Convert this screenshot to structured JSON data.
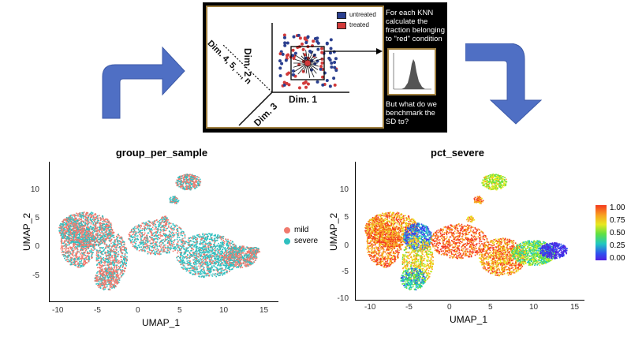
{
  "schematic": {
    "axes": {
      "dim1": "Dim. 1",
      "dim2": "Dim. 2",
      "dim3": "Dim. 3",
      "dim_n": "Dim. 4, 5, ..., n"
    },
    "legend": {
      "untreated": "untreated",
      "treated": "treated",
      "untreated_color": "#2a3f8f",
      "treated_color": "#d23a3a"
    },
    "side_text_top": "For each KNN calculate the fraction belonging to \"red\" condition",
    "side_text_bottom": "But what do we benchmark the SD to?"
  },
  "left_plot": {
    "title": "group_per_sample",
    "xlabel": "UMAP_1",
    "ylabel": "UMAP_2",
    "xticks": [
      "-10",
      "-5",
      "0",
      "5",
      "10",
      "15"
    ],
    "yticks": [
      "10",
      "5",
      "0",
      "-5"
    ],
    "legend": [
      {
        "label": "mild",
        "color": "#f07a6e"
      },
      {
        "label": "severe",
        "color": "#2fc0c0"
      }
    ]
  },
  "right_plot": {
    "title": "pct_severe",
    "xlabel": "UMAP_1",
    "ylabel": "UMAP_2",
    "xticks": [
      "-10",
      "-5",
      "0",
      "5",
      "10",
      "15"
    ],
    "yticks": [
      "10",
      "5",
      "0",
      "-5",
      "-10"
    ],
    "colorbar_ticks": [
      "1.00",
      "0.75",
      "0.50",
      "0.25",
      "0.00"
    ]
  },
  "colors": {
    "arrow_blue": "#4f6fc4"
  }
}
